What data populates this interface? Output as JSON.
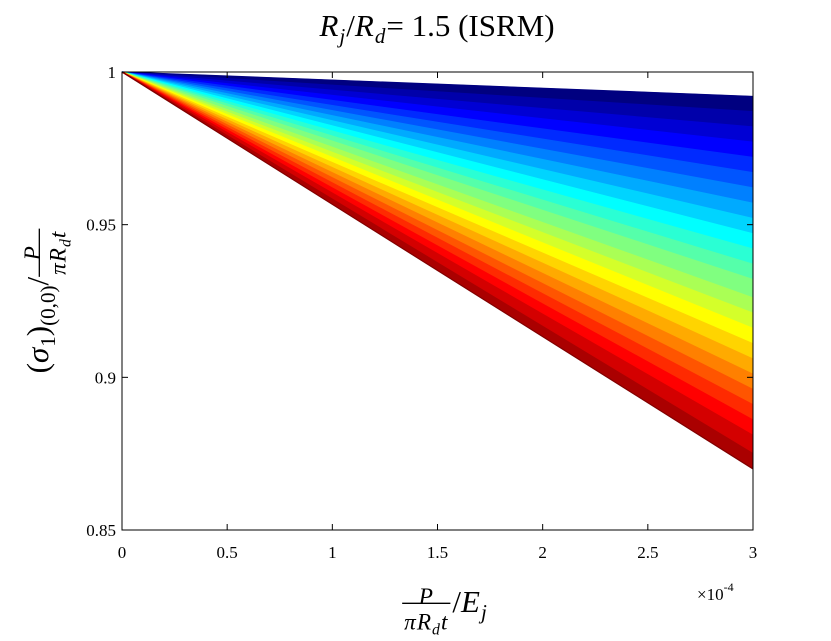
{
  "chart_data": {
    "type": "line",
    "title": [
      {
        "t": "R",
        "it": true
      },
      {
        "t": "j",
        "it": true,
        "sub": true
      },
      {
        "t": "/"
      },
      {
        "t": "R",
        "it": true
      },
      {
        "t": "d",
        "it": true,
        "sub": true
      },
      {
        "t": " = 1.5 (ISRM)"
      }
    ],
    "xlabel": [
      {
        "frac": true,
        "num": [
          {
            "t": "P",
            "it": true
          }
        ],
        "den": [
          {
            "t": "π",
            "it": true
          },
          {
            "t": "R",
            "it": true
          },
          {
            "t": "d",
            "it": true,
            "sub": true
          },
          {
            "t": "t",
            "it": true
          }
        ]
      },
      {
        "t": "/"
      },
      {
        "t": "E",
        "it": true
      },
      {
        "t": "j",
        "it": true,
        "sub": true
      }
    ],
    "ylabel": [
      {
        "t": "("
      },
      {
        "t": "σ",
        "it": true
      },
      {
        "t": "1",
        "sub": true
      },
      {
        "t": ")"
      },
      {
        "t": "(0,0)",
        "sub": true
      },
      {
        "t": "/"
      },
      {
        "frac": true,
        "num": [
          {
            "t": "P",
            "it": true
          }
        ],
        "den": [
          {
            "t": "π",
            "it": true
          },
          {
            "t": "R",
            "it": true
          },
          {
            "t": "d",
            "it": true,
            "sub": true
          },
          {
            "t": "t",
            "it": true
          }
        ]
      }
    ],
    "x_multiplier": {
      "text": "×10",
      "exponent": -4
    },
    "x": [
      0,
      3
    ],
    "xlim": [
      0,
      3
    ],
    "xticks": [
      0,
      0.5,
      1,
      1.5,
      2,
      2.5,
      3
    ],
    "ylim": [
      0.85,
      1
    ],
    "yticks": [
      0.85,
      0.9,
      0.95,
      1
    ],
    "grid": false,
    "series": [
      {
        "color": "#000080",
        "values": [
          1,
          0.992
        ]
      },
      {
        "color": "#0000aa",
        "values": [
          1,
          0.987
        ]
      },
      {
        "color": "#0000d4",
        "values": [
          1,
          0.982
        ]
      },
      {
        "color": "#0000ff",
        "values": [
          1,
          0.977
        ]
      },
      {
        "color": "#002aff",
        "values": [
          1,
          0.972
        ]
      },
      {
        "color": "#0055ff",
        "values": [
          1,
          0.967
        ]
      },
      {
        "color": "#0080ff",
        "values": [
          1,
          0.962
        ]
      },
      {
        "color": "#00aaff",
        "values": [
          1,
          0.957
        ]
      },
      {
        "color": "#00d4ff",
        "values": [
          1,
          0.952
        ]
      },
      {
        "color": "#00ffff",
        "values": [
          1,
          0.947
        ]
      },
      {
        "color": "#2affd4",
        "values": [
          1,
          0.942
        ]
      },
      {
        "color": "#55ffaa",
        "values": [
          1,
          0.937
        ]
      },
      {
        "color": "#80ff80",
        "values": [
          1,
          0.932
        ]
      },
      {
        "color": "#aaff55",
        "values": [
          1,
          0.926
        ]
      },
      {
        "color": "#d4ff2a",
        "values": [
          1,
          0.921
        ]
      },
      {
        "color": "#ffff00",
        "values": [
          1,
          0.916
        ]
      },
      {
        "color": "#ffd400",
        "values": [
          1,
          0.911
        ]
      },
      {
        "color": "#ffaa00",
        "values": [
          1,
          0.906
        ]
      },
      {
        "color": "#ff8000",
        "values": [
          1,
          0.901
        ]
      },
      {
        "color": "#ff5500",
        "values": [
          1,
          0.896
        ]
      },
      {
        "color": "#ff2a00",
        "values": [
          1,
          0.891
        ]
      },
      {
        "color": "#ff0000",
        "values": [
          1,
          0.886
        ]
      },
      {
        "color": "#d40000",
        "values": [
          1,
          0.881
        ]
      },
      {
        "color": "#aa0000",
        "values": [
          1,
          0.875
        ]
      },
      {
        "color": "#800000",
        "values": [
          1,
          0.87
        ]
      }
    ]
  }
}
